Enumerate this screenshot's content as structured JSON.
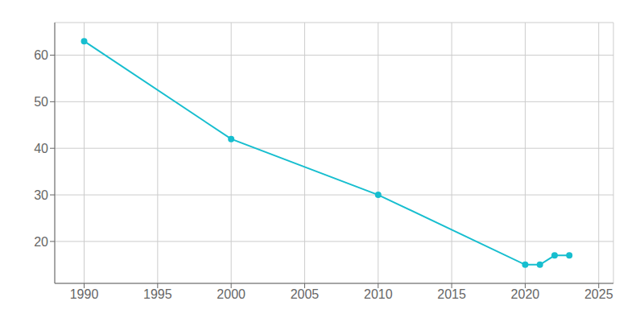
{
  "chart_data": {
    "type": "line",
    "x": [
      1990,
      2000,
      2010,
      2020,
      2021,
      2022,
      2023
    ],
    "values": [
      63,
      42,
      30,
      15,
      15,
      17,
      17
    ],
    "color": "#17BECF",
    "marker": "circle",
    "xlim": [
      1988,
      2026
    ],
    "ylim": [
      11,
      67
    ],
    "xticks": [
      1990,
      1995,
      2000,
      2005,
      2010,
      2015,
      2020,
      2025
    ],
    "yticks": [
      20,
      30,
      40,
      50,
      60
    ],
    "grid": true
  }
}
